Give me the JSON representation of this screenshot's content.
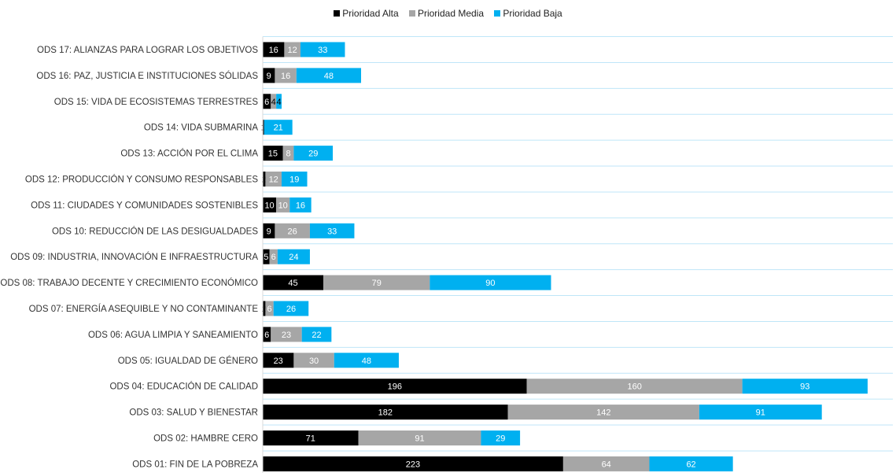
{
  "chart_data": {
    "type": "bar",
    "orientation": "horizontal",
    "stacked": true,
    "legend_position": "top",
    "grid": "horizontal",
    "colors": {
      "alta": "#000000",
      "media": "#a6a6a6",
      "baja": "#00b0f0",
      "grid": "#bfe6f8"
    },
    "categories": [
      "ODS 17: ALIANZAS PARA LOGRAR LOS OBJETIVOS",
      "ODS 16: PAZ, JUSTICIA E INSTITUCIONES SÓLIDAS",
      "ODS 15: VIDA DE ECOSISTEMAS TERRESTRES",
      "ODS 14: VIDA SUBMARINA",
      "ODS 13: ACCIÓN POR EL CLIMA",
      "ODS 12: PRODUCCIÓN Y CONSUMO RESPONSABLES",
      "ODS 11: CIUDADES Y COMUNIDADES SOSTENIBLES",
      "ODS 10: REDUCCIÓN DE LAS DESIGUALDADES",
      "ODS 09: INDUSTRIA, INNOVACIÓN E INFRAESTRUCTURA",
      "ODS 08: TRABAJO DECENTE Y CRECIMIENTO ECONÓMICO",
      "ODS 07: ENERGÍA ASEQUIBLE Y NO CONTAMINANTE",
      "ODS 06: AGUA LIMPIA Y SANEAMIENTO",
      "ODS 05: IGUALDAD DE GÉNERO",
      "ODS 04: EDUCACIÓN DE CALIDAD",
      "ODS 03: SALUD Y BIENESTAR",
      "ODS 02: HAMBRE CERO",
      "ODS 01: FIN DE LA POBREZA"
    ],
    "series": [
      {
        "name": "Prioridad Alta",
        "key": "alta",
        "text_color": "#ffffff",
        "values": [
          16,
          9,
          6,
          1,
          15,
          2,
          10,
          9,
          5,
          45,
          2,
          6,
          23,
          196,
          182,
          71,
          223
        ]
      },
      {
        "name": "Prioridad Media",
        "key": "media",
        "text_color": "#ffffff",
        "values": [
          12,
          16,
          4,
          0,
          8,
          12,
          10,
          26,
          6,
          79,
          6,
          23,
          30,
          160,
          142,
          91,
          64
        ]
      },
      {
        "name": "Prioridad Baja",
        "key": "baja",
        "text_color": "#ffffff",
        "values": [
          33,
          48,
          4,
          21,
          29,
          19,
          16,
          33,
          24,
          90,
          26,
          22,
          48,
          93,
          91,
          29,
          62
        ]
      }
    ]
  }
}
